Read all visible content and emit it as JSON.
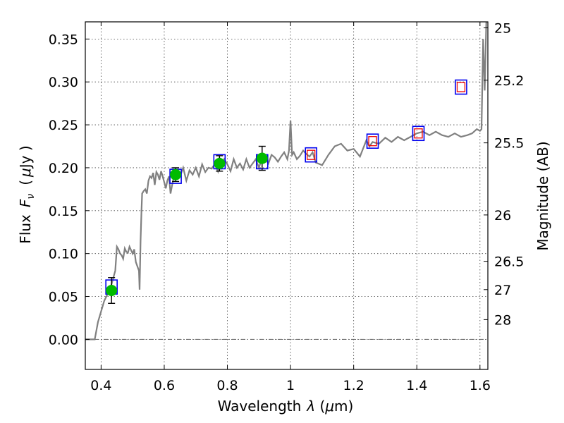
{
  "chart_data": {
    "type": "scatter",
    "title": "",
    "xlabel": "Wavelength",
    "xlabel_symbol": "λ",
    "xlabel_unit_open": " (",
    "xlabel_unit_mu": "μ",
    "xlabel_unit_close": "m)",
    "ylabel": "Flux",
    "ylabel_symbol": "F",
    "ylabel_symbol_sub": "ν",
    "ylabel_unit_open": "(",
    "ylabel_unit_mu": "μ",
    "ylabel_unit_close": "Jy )",
    "y2label": "Magnitude (AB)",
    "xlim": [
      0.35,
      1.625
    ],
    "ylim": [
      -0.035,
      0.37
    ],
    "grid": true,
    "xticks": [
      0.4,
      0.6,
      0.8,
      1.0,
      1.2,
      1.4,
      1.6
    ],
    "xtick_labels": [
      "0.4",
      "0.6",
      "0.8",
      "1",
      "1.2",
      "1.4",
      "1.6"
    ],
    "yticks": [
      0.0,
      0.05,
      0.1,
      0.15,
      0.2,
      0.25,
      0.3,
      0.35
    ],
    "ytick_labels": [
      "0.00",
      "0.05",
      "0.10",
      "0.15",
      "0.20",
      "0.25",
      "0.30",
      "0.35"
    ],
    "y2ticks": [
      {
        "label": "25",
        "flux": 0.363
      },
      {
        "label": "25.2",
        "flux": 0.302
      },
      {
        "label": "25.5",
        "flux": 0.229
      },
      {
        "label": "26",
        "flux": 0.145
      },
      {
        "label": "26.5",
        "flux": 0.091
      },
      {
        "label": "27",
        "flux": 0.058
      },
      {
        "label": "28",
        "flux": 0.023
      }
    ],
    "colors": {
      "spectrum": "#808080",
      "observed": "#00bb00",
      "model_box": "#0000ee",
      "model_inner": "#ee0000",
      "errorbar": "#000000",
      "grid": "#444444",
      "zero_line": "#666666"
    },
    "series": [
      {
        "type": "line",
        "x": [
          0.35,
          0.38,
          0.39,
          0.41,
          0.43,
          0.445,
          0.45,
          0.455,
          0.46,
          0.465,
          0.47,
          0.475,
          0.48,
          0.485,
          0.49,
          0.495,
          0.5,
          0.505,
          0.51,
          0.515,
          0.52,
          0.522,
          0.525,
          0.528,
          0.53,
          0.535,
          0.54,
          0.545,
          0.55,
          0.555,
          0.56,
          0.565,
          0.57,
          0.575,
          0.58,
          0.585,
          0.59,
          0.595,
          0.6,
          0.605,
          0.61,
          0.615,
          0.62,
          0.625,
          0.63,
          0.64,
          0.65,
          0.66,
          0.67,
          0.68,
          0.69,
          0.7,
          0.71,
          0.72,
          0.73,
          0.74,
          0.75,
          0.76,
          0.77,
          0.775,
          0.78,
          0.79,
          0.8,
          0.81,
          0.82,
          0.83,
          0.84,
          0.85,
          0.86,
          0.87,
          0.88,
          0.89,
          0.9,
          0.91,
          0.92,
          0.93,
          0.94,
          0.95,
          0.96,
          0.97,
          0.98,
          0.99,
          0.995,
          1.0,
          1.005,
          1.01,
          1.02,
          1.03,
          1.04,
          1.05,
          1.06,
          1.07,
          1.08,
          1.1,
          1.12,
          1.14,
          1.16,
          1.18,
          1.2,
          1.22,
          1.24,
          1.25,
          1.26,
          1.28,
          1.3,
          1.32,
          1.34,
          1.36,
          1.38,
          1.4,
          1.42,
          1.44,
          1.46,
          1.48,
          1.5,
          1.52,
          1.54,
          1.56,
          1.575,
          1.59,
          1.6,
          1.605,
          1.61,
          1.615,
          1.62
        ],
        "y": [
          0.0,
          0.0,
          0.02,
          0.045,
          0.06,
          0.08,
          0.108,
          0.105,
          0.1,
          0.098,
          0.094,
          0.106,
          0.102,
          0.101,
          0.108,
          0.104,
          0.1,
          0.105,
          0.09,
          0.085,
          0.08,
          0.058,
          0.115,
          0.15,
          0.17,
          0.173,
          0.175,
          0.17,
          0.185,
          0.19,
          0.188,
          0.194,
          0.18,
          0.195,
          0.192,
          0.186,
          0.196,
          0.19,
          0.183,
          0.176,
          0.185,
          0.19,
          0.17,
          0.18,
          0.189,
          0.195,
          0.19,
          0.2,
          0.185,
          0.197,
          0.192,
          0.2,
          0.19,
          0.204,
          0.195,
          0.2,
          0.199,
          0.204,
          0.196,
          0.212,
          0.2,
          0.21,
          0.204,
          0.196,
          0.21,
          0.2,
          0.205,
          0.198,
          0.21,
          0.2,
          0.205,
          0.21,
          0.2,
          0.212,
          0.21,
          0.205,
          0.215,
          0.212,
          0.207,
          0.213,
          0.218,
          0.21,
          0.22,
          0.255,
          0.215,
          0.218,
          0.21,
          0.214,
          0.22,
          0.216,
          0.213,
          0.218,
          0.206,
          0.203,
          0.215,
          0.225,
          0.228,
          0.22,
          0.222,
          0.213,
          0.232,
          0.225,
          0.23,
          0.228,
          0.235,
          0.23,
          0.236,
          0.232,
          0.236,
          0.24,
          0.242,
          0.238,
          0.242,
          0.238,
          0.236,
          0.24,
          0.236,
          0.238,
          0.24,
          0.245,
          0.243,
          0.245,
          0.35,
          0.29,
          0.37
        ]
      },
      {
        "type": "points-errorbar",
        "x": [
          0.433,
          0.636,
          0.775,
          0.91
        ],
        "y": [
          0.057,
          0.192,
          0.205,
          0.211
        ],
        "yerr": [
          0.015,
          0.008,
          0.009,
          0.014
        ]
      },
      {
        "type": "model-boxes",
        "x": [
          0.433,
          0.636,
          0.775,
          0.91,
          1.065,
          1.26,
          1.405,
          1.54
        ],
        "y": [
          0.061,
          0.19,
          0.207,
          0.207,
          0.215,
          0.231,
          0.24,
          0.294
        ],
        "inner": [
          false,
          false,
          false,
          false,
          true,
          true,
          true,
          true
        ]
      }
    ]
  }
}
